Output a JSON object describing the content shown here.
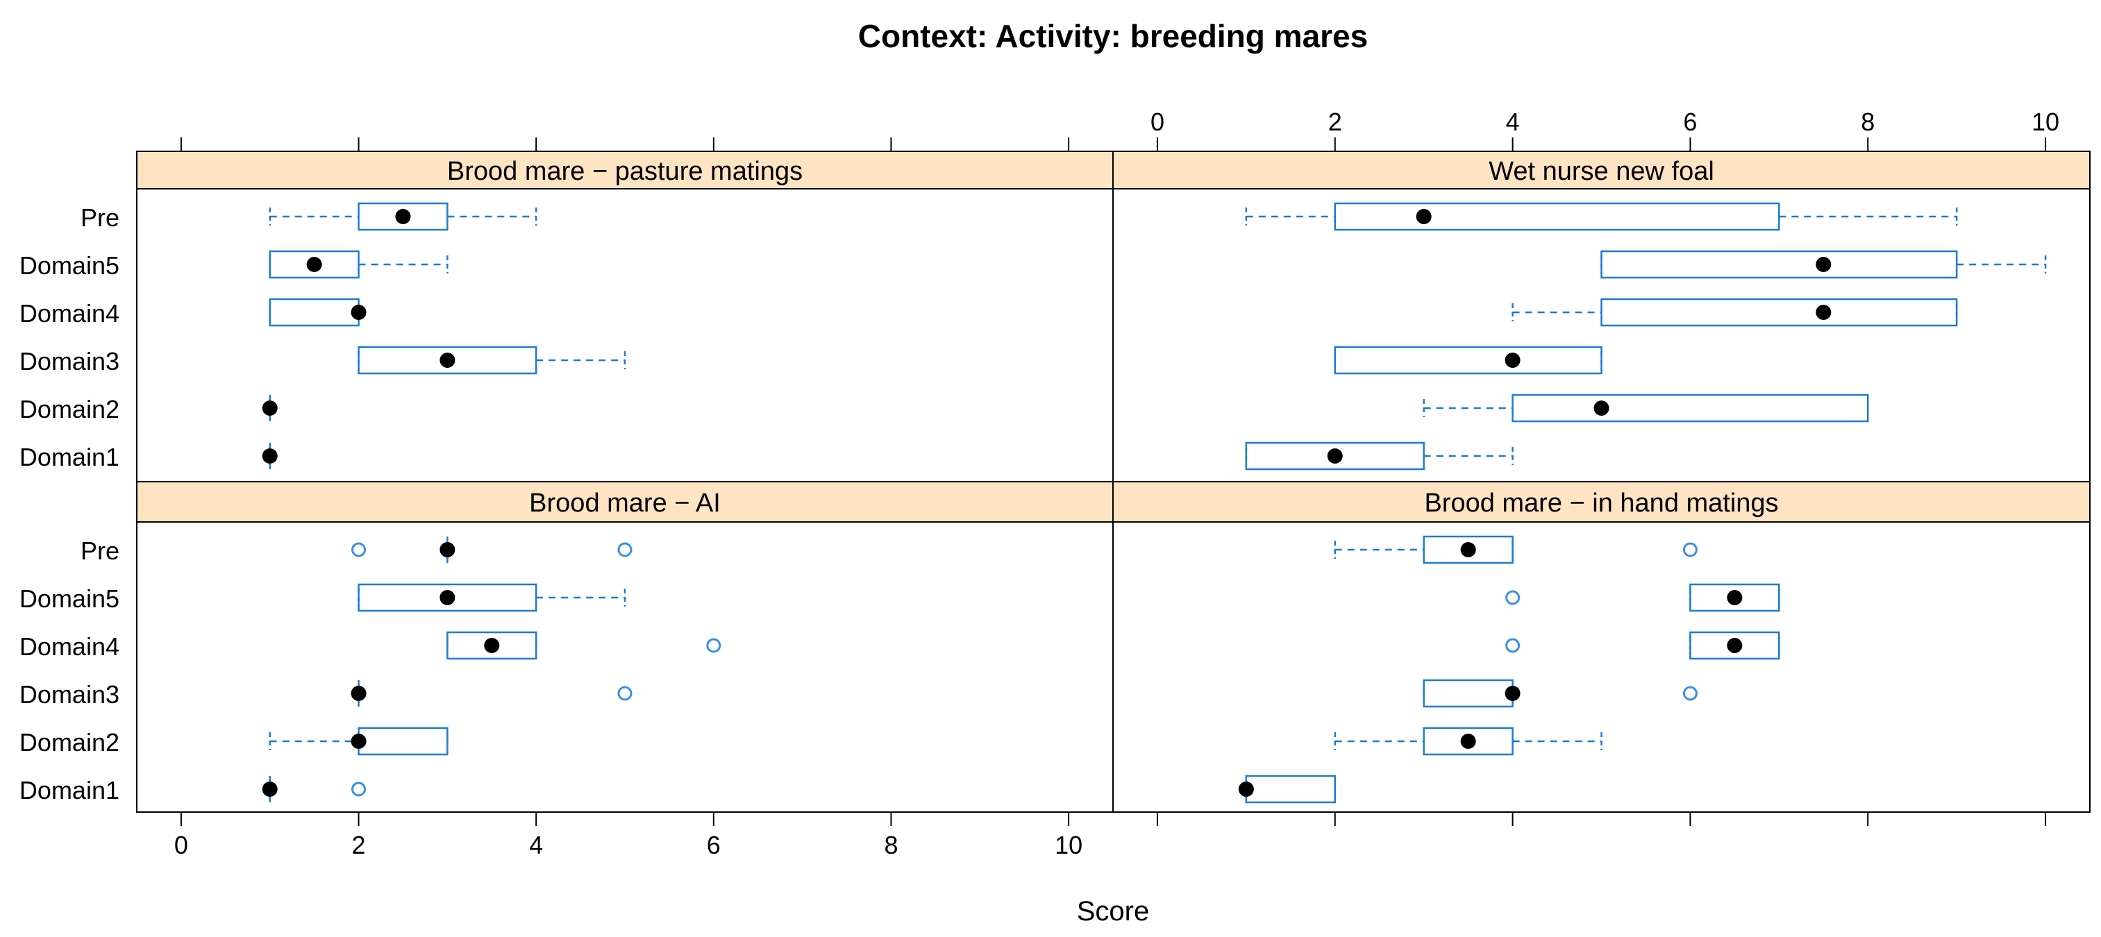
{
  "chart_data": {
    "type": "boxplot",
    "title": "Context: Activity: breeding mares",
    "xlabel": "Score",
    "xlim": [
      -0.5,
      10.5
    ],
    "xticks": [
      0,
      2,
      4,
      6,
      8,
      10
    ],
    "categories": [
      "Pre",
      "Domain5",
      "Domain4",
      "Domain3",
      "Domain2",
      "Domain1"
    ],
    "colors": {
      "box": "#1a7bd6",
      "strip": "#ffe4c4",
      "median": "#000000",
      "outlier": "#3a8ee6",
      "frame": "#000000"
    },
    "panels": [
      {
        "title": "Brood mare − pasture matings",
        "row": "top",
        "col": "left",
        "boxes": [
          {
            "category": "Pre",
            "lower_whisker": 1,
            "q1": 2,
            "median": 2.5,
            "q3": 3,
            "upper_whisker": 4,
            "outliers": []
          },
          {
            "category": "Domain5",
            "lower_whisker": 1,
            "q1": 1,
            "median": 1.5,
            "q3": 2,
            "upper_whisker": 3,
            "outliers": []
          },
          {
            "category": "Domain4",
            "lower_whisker": 1,
            "q1": 1,
            "median": 2,
            "q3": 2,
            "upper_whisker": 2,
            "outliers": []
          },
          {
            "category": "Domain3",
            "lower_whisker": 2,
            "q1": 2,
            "median": 3,
            "q3": 4,
            "upper_whisker": 5,
            "outliers": []
          },
          {
            "category": "Domain2",
            "lower_whisker": 1,
            "q1": 1,
            "median": 1,
            "q3": 1,
            "upper_whisker": 1,
            "outliers": []
          },
          {
            "category": "Domain1",
            "lower_whisker": 1,
            "q1": 1,
            "median": 1,
            "q3": 1,
            "upper_whisker": 1,
            "outliers": []
          }
        ]
      },
      {
        "title": "Wet nurse new foal",
        "row": "top",
        "col": "right",
        "boxes": [
          {
            "category": "Pre",
            "lower_whisker": 1,
            "q1": 2,
            "median": 3,
            "q3": 7,
            "upper_whisker": 9,
            "outliers": []
          },
          {
            "category": "Domain5",
            "lower_whisker": 5,
            "q1": 5,
            "median": 7.5,
            "q3": 9,
            "upper_whisker": 10,
            "outliers": []
          },
          {
            "category": "Domain4",
            "lower_whisker": 4,
            "q1": 5,
            "median": 7.5,
            "q3": 9,
            "upper_whisker": 9,
            "outliers": []
          },
          {
            "category": "Domain3",
            "lower_whisker": 2,
            "q1": 2,
            "median": 4,
            "q3": 5,
            "upper_whisker": 5,
            "outliers": []
          },
          {
            "category": "Domain2",
            "lower_whisker": 3,
            "q1": 4,
            "median": 5,
            "q3": 8,
            "upper_whisker": 8,
            "outliers": []
          },
          {
            "category": "Domain1",
            "lower_whisker": 1,
            "q1": 1,
            "median": 2,
            "q3": 3,
            "upper_whisker": 4,
            "outliers": []
          }
        ]
      },
      {
        "title": "Brood mare − AI",
        "row": "bottom",
        "col": "left",
        "boxes": [
          {
            "category": "Pre",
            "lower_whisker": 3,
            "q1": 3,
            "median": 3,
            "q3": 3,
            "upper_whisker": 3,
            "outliers": [
              2,
              5
            ]
          },
          {
            "category": "Domain5",
            "lower_whisker": 2,
            "q1": 2,
            "median": 3,
            "q3": 4,
            "upper_whisker": 5,
            "outliers": []
          },
          {
            "category": "Domain4",
            "lower_whisker": 3,
            "q1": 3,
            "median": 3.5,
            "q3": 4,
            "upper_whisker": 4,
            "outliers": [
              6
            ]
          },
          {
            "category": "Domain3",
            "lower_whisker": 2,
            "q1": 2,
            "median": 2,
            "q3": 2,
            "upper_whisker": 2,
            "outliers": [
              5
            ]
          },
          {
            "category": "Domain2",
            "lower_whisker": 1,
            "q1": 2,
            "median": 2,
            "q3": 3,
            "upper_whisker": 3,
            "outliers": []
          },
          {
            "category": "Domain1",
            "lower_whisker": 1,
            "q1": 1,
            "median": 1,
            "q3": 1,
            "upper_whisker": 1,
            "outliers": [
              2
            ]
          }
        ]
      },
      {
        "title": "Brood mare − in hand matings",
        "row": "bottom",
        "col": "right",
        "boxes": [
          {
            "category": "Pre",
            "lower_whisker": 2,
            "q1": 3,
            "median": 3.5,
            "q3": 4,
            "upper_whisker": 4,
            "outliers": [
              6
            ]
          },
          {
            "category": "Domain5",
            "lower_whisker": 6,
            "q1": 6,
            "median": 6.5,
            "q3": 7,
            "upper_whisker": 7,
            "outliers": [
              4
            ]
          },
          {
            "category": "Domain4",
            "lower_whisker": 6,
            "q1": 6,
            "median": 6.5,
            "q3": 7,
            "upper_whisker": 7,
            "outliers": [
              4
            ]
          },
          {
            "category": "Domain3",
            "lower_whisker": 3,
            "q1": 3,
            "median": 4,
            "q3": 4,
            "upper_whisker": 4,
            "outliers": [
              6
            ]
          },
          {
            "category": "Domain2",
            "lower_whisker": 2,
            "q1": 3,
            "median": 3.5,
            "q3": 4,
            "upper_whisker": 5,
            "outliers": []
          },
          {
            "category": "Domain1",
            "lower_whisker": 1,
            "q1": 1,
            "median": 1,
            "q3": 2,
            "upper_whisker": 2,
            "outliers": []
          }
        ]
      }
    ]
  }
}
